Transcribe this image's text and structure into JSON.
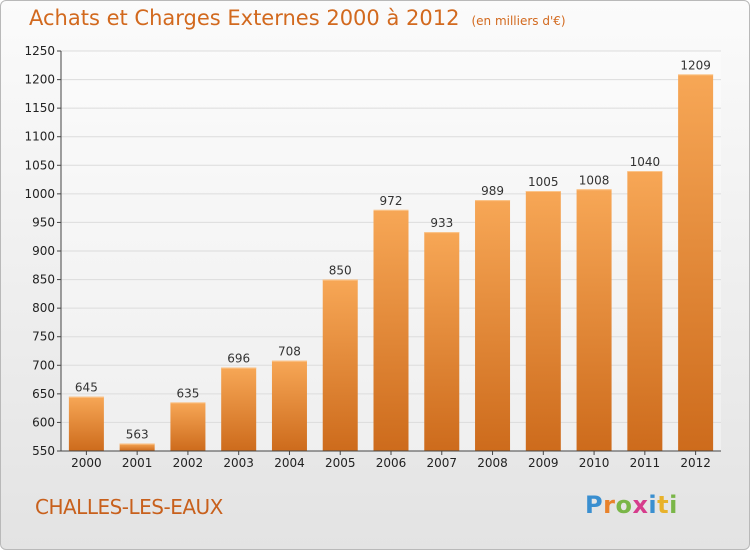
{
  "title": "Achats et Charges Externes 2000 à 2012",
  "unit": "(en milliers d'€)",
  "commune": "CHALLES-LES-EAUX",
  "brand": {
    "name": "Proxiti",
    "letters": [
      "P",
      "r",
      "o",
      "x",
      "i",
      "t",
      "i"
    ],
    "colors": [
      "#3a8fd0",
      "#e8822b",
      "#7ab648",
      "#d63c8c",
      "#3a8fd0",
      "#e8b22b",
      "#7ab648"
    ]
  },
  "colors": {
    "bar_top": "#f7a756",
    "bar_bottom": "#cd6b1c",
    "title": "#d2691e"
  },
  "chart_data": {
    "type": "bar",
    "title": "Achats et Charges Externes 2000 à 2012",
    "subtitle": "(en milliers d'€)",
    "categories": [
      "2000",
      "2001",
      "2002",
      "2003",
      "2004",
      "2005",
      "2006",
      "2007",
      "2008",
      "2009",
      "2010",
      "2011",
      "2012"
    ],
    "values": [
      645,
      563,
      635,
      696,
      708,
      850,
      972,
      933,
      989,
      1005,
      1008,
      1040,
      1209
    ],
    "ylim": [
      550,
      1250
    ],
    "yticks": [
      550,
      600,
      650,
      700,
      750,
      800,
      850,
      900,
      950,
      1000,
      1050,
      1100,
      1150,
      1200,
      1250
    ],
    "grid": true
  }
}
